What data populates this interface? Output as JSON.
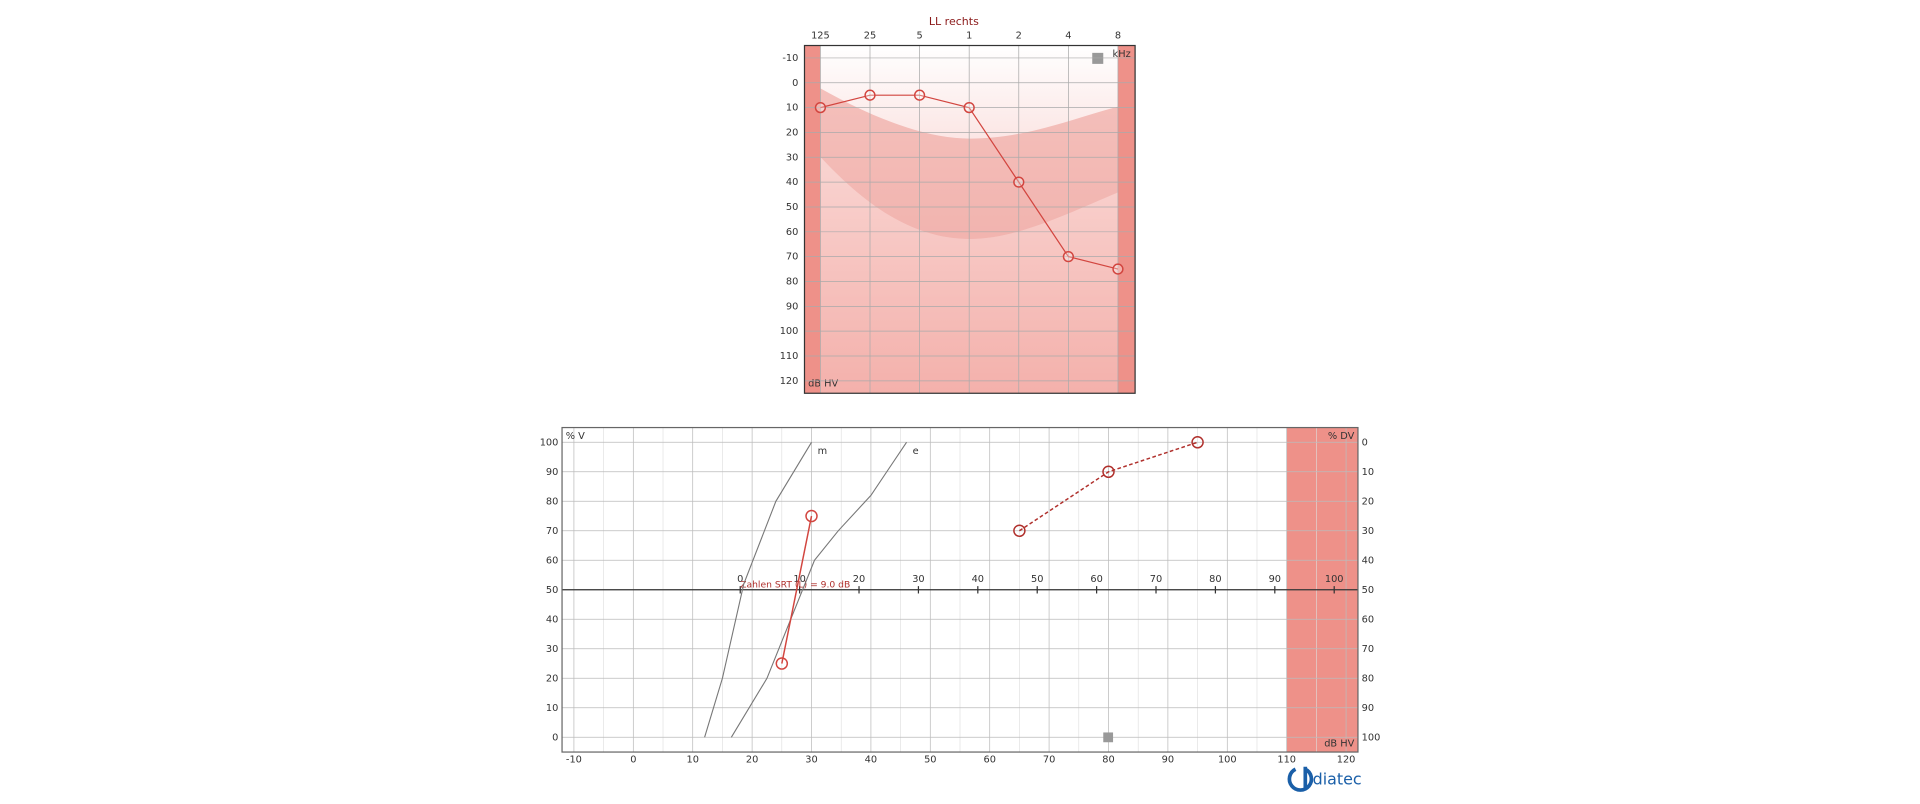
{
  "chart_data": [
    {
      "type": "line",
      "title": "LL rechts",
      "x_label": "kHz",
      "y_label": "dB HV",
      "categories": [
        "125",
        "25",
        "5",
        "1",
        "2",
        "4",
        "8"
      ],
      "ylim": [
        125,
        -15
      ],
      "yticks": [
        -10,
        0,
        10,
        20,
        30,
        40,
        50,
        60,
        70,
        80,
        90,
        100,
        110,
        120
      ],
      "grid": true,
      "series": [
        {
          "color": "#d2453f",
          "marker": "circle",
          "values": [
            10,
            5,
            5,
            10,
            40,
            70,
            75
          ]
        }
      ]
    },
    {
      "type": "line",
      "y_label": "% V",
      "y2_label": "% DV",
      "x_label": "dB HV",
      "xlim": [
        -12,
        122
      ],
      "xticks": [
        -10,
        0,
        10,
        20,
        30,
        40,
        50,
        60,
        70,
        80,
        90,
        100,
        110,
        120
      ],
      "x2lim": [
        -30,
        104
      ],
      "x2ticks": [
        0,
        10,
        20,
        30,
        40,
        50,
        60,
        70,
        80,
        90,
        100
      ],
      "ylim": [
        -5,
        105
      ],
      "yticks": [
        0,
        10,
        20,
        30,
        40,
        50,
        60,
        70,
        80,
        90,
        100
      ],
      "y2lim": [
        105,
        -5
      ],
      "y2ticks": [
        0,
        10,
        20,
        30,
        40,
        50,
        60,
        70,
        80,
        90,
        100
      ],
      "grid": true,
      "masked_range": [
        110,
        122
      ],
      "masked_color": "#ee9189",
      "annotation": "Zahlen SRT (L) = 9.0 dB",
      "series": [
        {
          "name": "m",
          "color": "#777777",
          "x": [
            12,
            15,
            18.6,
            24,
            30
          ],
          "values": [
            0,
            20,
            52,
            80,
            100
          ]
        },
        {
          "name": "e",
          "color": "#777777",
          "x": [
            16.5,
            22.5,
            30.5,
            34.5,
            40,
            46
          ],
          "values": [
            0,
            20,
            60,
            70,
            82,
            100
          ]
        },
        {
          "color": "#d2453f",
          "marker": "circle",
          "x": [
            30,
            25
          ],
          "values": [
            75,
            25
          ]
        },
        {
          "color": "#b0302c",
          "marker": "circle",
          "dash": true,
          "x": [
            65,
            80,
            95
          ],
          "values": [
            70,
            90,
            100
          ]
        }
      ]
    }
  ],
  "logo": "diatec"
}
